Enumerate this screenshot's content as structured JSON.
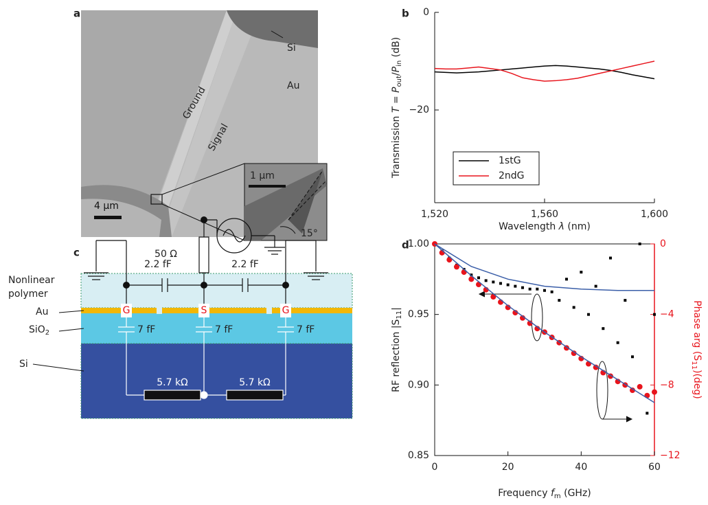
{
  "image_a": {
    "label": "a",
    "si": "Si",
    "au": "Au",
    "ground": "Ground",
    "signal": "Signal",
    "scale_main": "4 μm",
    "scale_inset": "1 μm",
    "angle": "15°"
  },
  "diagram_c": {
    "label": "c",
    "r_source": "50 Ω",
    "c_top": [
      "2.2 fF",
      "2.2 fF"
    ],
    "polymer": [
      "Nonlinear",
      "polymer"
    ],
    "au": "Au",
    "sio2": [
      "SiO",
      "2"
    ],
    "si": "Si",
    "electrodes": [
      "G",
      "S",
      "G"
    ],
    "c_oxide": [
      "7 fF",
      "7 fF",
      "7 fF"
    ],
    "r_substrate": [
      "5.7 kΩ",
      "5.7 kΩ"
    ]
  },
  "chart_data": [
    {
      "type": "line",
      "label": "b",
      "xlabel": [
        {
          "t": "Wavelength "
        },
        {
          "t": "λ",
          "italic": true
        },
        {
          "t": " (nm)"
        }
      ],
      "ylabel": [
        {
          "t": "Transmission "
        },
        {
          "t": "T",
          "italic": true
        },
        {
          "t": " = "
        },
        {
          "t": "P",
          "italic": true
        },
        {
          "t": "out",
          "sub": true
        },
        {
          "t": "/"
        },
        {
          "t": "P",
          "italic": true
        },
        {
          "t": "in",
          "sub": true
        },
        {
          "t": " (dB)"
        }
      ],
      "x": [
        1520,
        1524,
        1528,
        1532,
        1536,
        1540,
        1544,
        1548,
        1552,
        1556,
        1560,
        1564,
        1568,
        1572,
        1576,
        1580,
        1584,
        1588,
        1592,
        1596,
        1600
      ],
      "xlim": [
        1520,
        1600
      ],
      "xticks": [
        {
          "value": 1520,
          "label": "1,520"
        },
        {
          "value": 1560,
          "label": "1,560"
        },
        {
          "value": 1600,
          "label": "1,600"
        }
      ],
      "ylim": [
        -39,
        0
      ],
      "yticks": [
        0,
        {
          "value": -20,
          "label": "−20"
        }
      ],
      "legend": "lower left",
      "series": [
        {
          "name": "1stG",
          "color": "#000000",
          "values": [
            -12.2,
            -12.3,
            -12.4,
            -12.3,
            -12.2,
            -12.0,
            -11.8,
            -11.6,
            -11.4,
            -11.2,
            -11.0,
            -10.9,
            -11.0,
            -11.2,
            -11.4,
            -11.6,
            -11.9,
            -12.3,
            -12.8,
            -13.2,
            -13.6
          ]
        },
        {
          "name": "2ndG",
          "color": "#e8141c",
          "values": [
            -11.5,
            -11.6,
            -11.6,
            -11.4,
            -11.2,
            -11.5,
            -11.8,
            -12.5,
            -13.4,
            -13.8,
            -14.1,
            -14.0,
            -13.8,
            -13.5,
            -13.0,
            -12.5,
            -12.0,
            -11.5,
            -11.0,
            -10.5,
            -10.0
          ]
        }
      ]
    },
    {
      "type": "scatter",
      "label": "d",
      "xlabel": [
        {
          "t": "Frequency "
        },
        {
          "t": "f",
          "italic": true
        },
        {
          "t": "m",
          "sub": true
        },
        {
          "t": " (GHz)"
        }
      ],
      "ylabel": [
        {
          "t": "RF reflection |S"
        },
        {
          "t": "11",
          "sub": true
        },
        {
          "t": "|"
        }
      ],
      "y2label": [
        {
          "t": "Phase arg (S"
        },
        {
          "t": "11",
          "sub": true
        },
        {
          "t": ")(deg)"
        }
      ],
      "xlim": [
        0,
        60
      ],
      "xticks": [
        0,
        20,
        40,
        60
      ],
      "ylim": [
        0.85,
        1.0
      ],
      "yticks": [
        0.85,
        {
          "value": 0.9,
          "label": "0.90"
        },
        0.95,
        {
          "value": 1.0,
          "label": "1.00"
        }
      ],
      "y2lim": [
        -12,
        0
      ],
      "y2ticks": [
        0,
        {
          "value": -4,
          "label": "−4"
        },
        {
          "value": -8,
          "label": "−8"
        },
        {
          "value": -12,
          "label": "−12"
        }
      ],
      "y2color": "#e8141c",
      "series": [
        {
          "mode": "markers",
          "marker": "square",
          "color": "#000000",
          "x": [
            0,
            2,
            4,
            6,
            8,
            10,
            12,
            14,
            16,
            18,
            20,
            22,
            24,
            26,
            28,
            30,
            32,
            34,
            36,
            38,
            40,
            42,
            44,
            46,
            48,
            50,
            52,
            54,
            56,
            58,
            60
          ],
          "values": [
            1.0,
            0.995,
            0.99,
            0.985,
            0.982,
            0.978,
            0.976,
            0.974,
            0.973,
            0.972,
            0.971,
            0.97,
            0.969,
            0.968,
            0.968,
            0.967,
            0.966,
            0.96,
            0.975,
            0.955,
            0.98,
            0.95,
            0.97,
            0.94,
            0.99,
            0.93,
            0.96,
            0.92,
            1.0,
            0.88,
            0.95
          ]
        },
        {
          "mode": "markers",
          "marker": "circle",
          "axis": "y2",
          "color": "#e8141c",
          "x": [
            0,
            2,
            4,
            6,
            8,
            10,
            12,
            14,
            16,
            18,
            20,
            22,
            24,
            26,
            28,
            30,
            32,
            34,
            36,
            38,
            40,
            42,
            44,
            46,
            48,
            50,
            52,
            54,
            56,
            58,
            60
          ],
          "values": [
            0,
            -0.5,
            -0.9,
            -1.3,
            -1.6,
            -2.0,
            -2.3,
            -2.6,
            -3.0,
            -3.3,
            -3.6,
            -3.9,
            -4.2,
            -4.5,
            -4.8,
            -5.0,
            -5.3,
            -5.6,
            -5.9,
            -6.2,
            -6.5,
            -6.8,
            -7.0,
            -7.3,
            -7.5,
            -7.8,
            -8.0,
            -8.3,
            -8.1,
            -8.6,
            -8.4
          ]
        },
        {
          "mode": "line",
          "color": "#3a5ea8",
          "x": [
            0,
            10,
            20,
            30,
            40,
            50,
            60
          ],
          "values": [
            1.0,
            0.984,
            0.975,
            0.97,
            0.968,
            0.967,
            0.967
          ]
        },
        {
          "mode": "line",
          "axis": "y2",
          "color": "#3a5ea8",
          "x": [
            0,
            10,
            20,
            30,
            40,
            50,
            60
          ],
          "values": [
            0,
            -1.8,
            -3.5,
            -5.0,
            -6.4,
            -7.7,
            -9.0
          ]
        }
      ]
    }
  ]
}
